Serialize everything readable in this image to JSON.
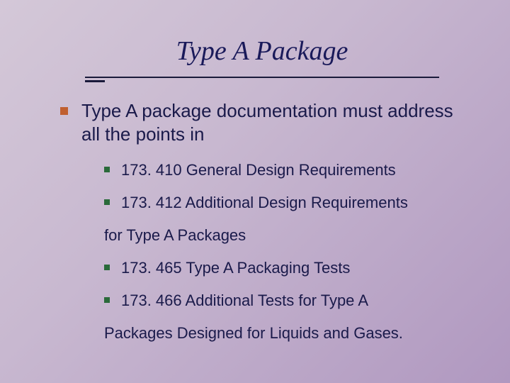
{
  "slide": {
    "title": "Type A Package",
    "title_color": "#1a1a5a",
    "title_fontsize": 38,
    "underline_color": "#1a1a3a",
    "background_gradient": [
      "#d4c8d8",
      "#c8b8d0",
      "#bca8c8",
      "#b098c0"
    ],
    "bullet_level1_color": "#c06030",
    "bullet_level2_color": "#2a6a3a",
    "text_color": "#1a1a4a",
    "level1_fontsize": 26,
    "level2_fontsize": 22,
    "lead": "Type A package documentation must address all the points in",
    "items": [
      {
        "text": "173. 410 General Design Requirements"
      },
      {
        "text": "173. 412 Additional Design Requirements",
        "continuation": "for Type A Packages"
      },
      {
        "text": "173. 465 Type A Packaging Tests"
      },
      {
        "text": "173. 466 Additional Tests for Type A",
        "continuation": "Packages Designed for Liquids and Gases."
      }
    ]
  }
}
